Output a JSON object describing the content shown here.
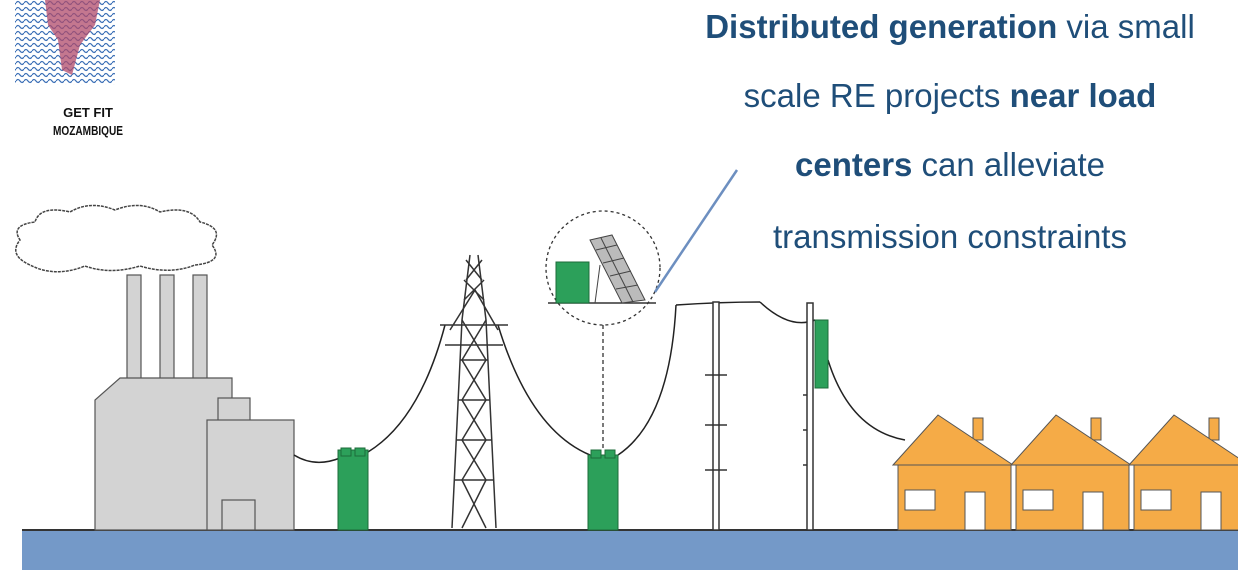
{
  "logo": {
    "lines": [
      "GET FIT",
      "MOZAMBIQUE"
    ]
  },
  "caption": {
    "lines": [
      [
        {
          "text": "Distributed generation",
          "bold": true
        },
        {
          "text": " via small",
          "bold": false
        }
      ],
      [
        {
          "text": "scale RE projects ",
          "bold": false
        },
        {
          "text": "near load",
          "bold": true
        }
      ],
      [
        {
          "text": "centers",
          "bold": true
        },
        {
          "text": " can alleviate",
          "bold": false
        }
      ],
      [
        {
          "text": "transmission constraints",
          "bold": false
        }
      ]
    ]
  }
}
